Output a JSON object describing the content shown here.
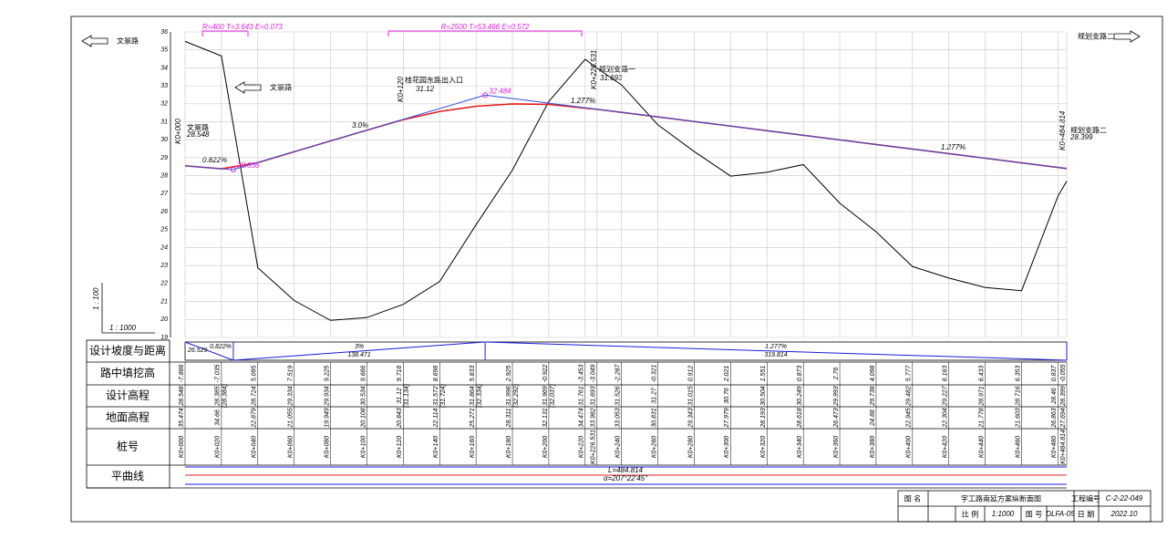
{
  "annotations": {
    "left_road": "文景路",
    "left_road_mid": "文景路",
    "right_road": "规划支路二",
    "curve1": "R=400 T=3.643 E=0.073",
    "curve2": "R=2500 T=53.466 E=0.572",
    "entrance": "桂花园东路出入口",
    "entrance_station": "K0+120",
    "entrance_elev": "31.12",
    "branch1": "规划支路一",
    "branch1_elev": "31.693",
    "branch1_station": "K0+226.531",
    "start_road": "文景路",
    "start_elev": "28.548",
    "start_station": "K0+000",
    "end_road": "规划支路二",
    "end_elev": "28.399",
    "end_station": "K0+484.814",
    "grade_up": "3.0%",
    "grade_down": "1.277%",
    "grade_down2": "1.277%",
    "grade_first": "0.822%",
    "vscale": "1 : 100",
    "hscale": "1 : 1000"
  },
  "profile": {
    "ylim": [
      19,
      36
    ],
    "yticks": [
      19,
      20,
      21,
      22,
      23,
      24,
      25,
      26,
      27,
      28,
      29,
      30,
      31,
      32,
      33,
      34,
      35,
      36
    ],
    "xlim": [
      0,
      484.814
    ],
    "stations": [
      {
        "value": 0,
        "label": "K0+000"
      },
      {
        "value": 20,
        "label": "K0+020"
      },
      {
        "value": 40,
        "label": "K0+040"
      },
      {
        "value": 60,
        "label": "K0+060"
      },
      {
        "value": 80,
        "label": "K0+080"
      },
      {
        "value": 100,
        "label": "K0+100"
      },
      {
        "value": 120,
        "label": "K0+120"
      },
      {
        "value": 140,
        "label": "K0+140"
      },
      {
        "value": 160,
        "label": "K0+160"
      },
      {
        "value": 180,
        "label": "K0+180"
      },
      {
        "value": 200,
        "label": "K0+200"
      },
      {
        "value": 220,
        "label": "K0+220"
      },
      {
        "value": 226.531,
        "label": "K0+226.531"
      },
      {
        "value": 240,
        "label": "K0+240"
      },
      {
        "value": 260,
        "label": "K0+260"
      },
      {
        "value": 280,
        "label": "K0+280"
      },
      {
        "value": 300,
        "label": "K0+300"
      },
      {
        "value": 320,
        "label": "K0+320"
      },
      {
        "value": 340,
        "label": "K0+340"
      },
      {
        "value": 360,
        "label": "K0+360"
      },
      {
        "value": 380,
        "label": "K0+380"
      },
      {
        "value": 400,
        "label": "K0+400"
      },
      {
        "value": 420,
        "label": "K0+420"
      },
      {
        "value": 440,
        "label": "K0+440"
      },
      {
        "value": 460,
        "label": "K0+460"
      },
      {
        "value": 480,
        "label": "K0+480"
      },
      {
        "value": 484.814,
        "label": "K0+484.814"
      }
    ],
    "fill_cut": [
      -7.886,
      -7.035,
      5.095,
      7.519,
      9.225,
      9.686,
      9.716,
      8.698,
      5.833,
      2.925,
      -0.922,
      -3.453,
      -3.049,
      -2.287,
      -0.321,
      0.912,
      2.021,
      1.551,
      0.873,
      2.76,
      4.098,
      5.777,
      6.163,
      6.433,
      6.353,
      0.837,
      -0.055
    ],
    "design": [
      28.548,
      28.385,
      28.724,
      29.334,
      29.934,
      30.534,
      31.12,
      31.572,
      31.864,
      31.996,
      31.969,
      31.761,
      31.693,
      31.526,
      31.27,
      31.015,
      30.76,
      30.504,
      30.249,
      29.993,
      29.738,
      29.482,
      29.227,
      28.971,
      28.716,
      28.46,
      28.399
    ],
    "design_alt": [
      null,
      "(28.384)",
      null,
      null,
      null,
      null,
      "(31.134)",
      "(31.724)",
      "(32.334)",
      "(32.292)",
      "(32.037)",
      null,
      null,
      null,
      null,
      null,
      null,
      null,
      null,
      null,
      null,
      null,
      null,
      null,
      null,
      null,
      null
    ],
    "ground": [
      35.474,
      34.66,
      22.879,
      21.055,
      19.949,
      20.108,
      20.843,
      22.114,
      25.271,
      28.311,
      32.131,
      34.474,
      33.982,
      33.053,
      30.831,
      29.343,
      27.979,
      28.193,
      28.618,
      26.473,
      24.88,
      22.945,
      22.304,
      21.778,
      21.603,
      26.863,
      27.694
    ],
    "pvi_elev": [
      28.548,
      28.336,
      32.484,
      28.399
    ],
    "grades": [
      {
        "grade": "0.822%",
        "length": 26.529,
        "table_label": "26.529"
      },
      {
        "grade": "3%",
        "length": 138.471,
        "table_label": "138.471"
      },
      {
        "grade": "1.277%",
        "length": 319.814,
        "table_label": "319.814"
      }
    ]
  },
  "table": {
    "row_labels": [
      "设计坡度与距离",
      "路中填挖高",
      "设计高程",
      "地面高程",
      "桩号",
      "平曲线"
    ],
    "curve_length": "L=484.814",
    "curve_angle": "α=207°22'45\""
  },
  "title_block": {
    "name_label": "图  名",
    "name": "宇工路南延方案纵断面图",
    "project_label": "工程编号",
    "project": "C-2-22-049",
    "scale_label": "比  例",
    "scale": "1:1000",
    "drawing_label": "图  号",
    "drawing": "DLFA-05",
    "date_label": "日  期",
    "date": "2022.10"
  }
}
